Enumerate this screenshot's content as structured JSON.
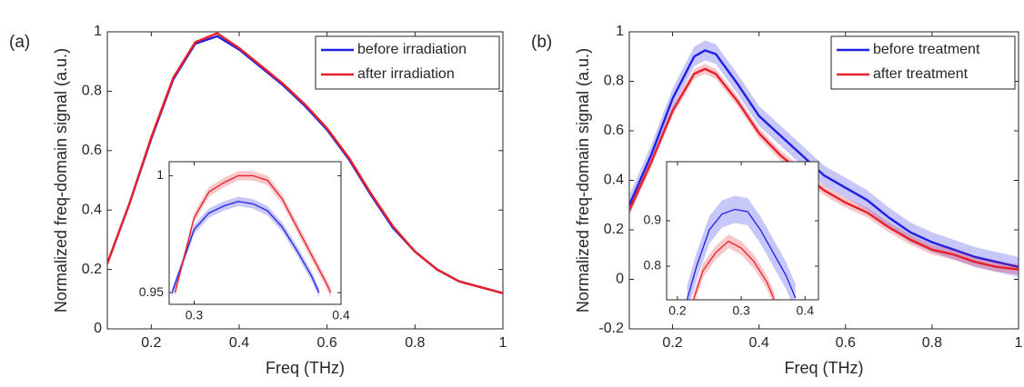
{
  "chart_data": [
    {
      "type": "line",
      "panel_label": "(a)",
      "xlabel": "Freq (THz)",
      "ylabel": "Normalized freq-domain signal (a.u.)",
      "xlim": [
        0.1,
        1
      ],
      "ylim": [
        0,
        1
      ],
      "xticks": [
        0.2,
        0.4,
        0.6,
        0.8,
        1
      ],
      "yticks": [
        0,
        0.2,
        0.4,
        0.6,
        0.8,
        1
      ],
      "legend": "upper right",
      "x": [
        0.1,
        0.15,
        0.2,
        0.25,
        0.3,
        0.35,
        0.4,
        0.45,
        0.5,
        0.55,
        0.6,
        0.65,
        0.7,
        0.75,
        0.8,
        0.85,
        0.9,
        0.95,
        1
      ],
      "series": [
        {
          "name": "before irradiation",
          "color": "#1f1fe6",
          "band": 0.003,
          "values": [
            0.22,
            0.42,
            0.64,
            0.84,
            0.96,
            0.985,
            0.94,
            0.88,
            0.82,
            0.75,
            0.67,
            0.57,
            0.45,
            0.34,
            0.26,
            0.2,
            0.16,
            0.14,
            0.12
          ]
        },
        {
          "name": "after irradiation",
          "color": "#e8202a",
          "band": 0.003,
          "values": [
            0.22,
            0.42,
            0.645,
            0.845,
            0.965,
            0.995,
            0.945,
            0.885,
            0.825,
            0.755,
            0.675,
            0.575,
            0.455,
            0.345,
            0.26,
            0.2,
            0.16,
            0.14,
            0.12
          ]
        }
      ],
      "inset": {
        "xlim": [
          0.283,
          0.4
        ],
        "ylim": [
          0.945,
          1.006
        ],
        "xticks": [
          0.3,
          0.4
        ],
        "yticks": [
          0.95,
          1
        ],
        "series": [
          {
            "color": "#1f1fe6",
            "band": 0.002,
            "x": [
              0.285,
              0.3,
              0.31,
              0.32,
              0.33,
              0.34,
              0.35,
              0.36,
              0.37,
              0.38,
              0.385
            ],
            "values": [
              0.95,
              0.977,
              0.984,
              0.987,
              0.989,
              0.988,
              0.985,
              0.978,
              0.968,
              0.957,
              0.95
            ]
          },
          {
            "color": "#e8202a",
            "band": 0.002,
            "x": [
              0.287,
              0.3,
              0.31,
              0.32,
              0.33,
              0.34,
              0.35,
              0.36,
              0.37,
              0.38,
              0.39,
              0.393
            ],
            "values": [
              0.95,
              0.982,
              0.993,
              0.997,
              1.0,
              1.0,
              0.998,
              0.99,
              0.978,
              0.966,
              0.954,
              0.95
            ]
          }
        ]
      }
    },
    {
      "type": "line",
      "panel_label": "(b)",
      "xlabel": "Freq (THz)",
      "ylabel": "Normalized freq-domain signal (a.u.)",
      "xlim": [
        0.1,
        1
      ],
      "ylim": [
        -0.2,
        1
      ],
      "xticks": [
        0.2,
        0.4,
        0.6,
        0.8,
        1
      ],
      "yticks": [
        -0.2,
        0,
        0.2,
        0.4,
        0.6,
        0.8,
        1
      ],
      "legend": "upper right",
      "x": [
        0.1,
        0.15,
        0.2,
        0.25,
        0.275,
        0.3,
        0.35,
        0.4,
        0.45,
        0.5,
        0.55,
        0.6,
        0.65,
        0.7,
        0.75,
        0.8,
        0.85,
        0.9,
        0.95,
        1
      ],
      "series": [
        {
          "name": "before treatment",
          "color": "#1f1fe6",
          "band": 0.04,
          "values": [
            0.3,
            0.5,
            0.73,
            0.9,
            0.925,
            0.91,
            0.79,
            0.66,
            0.58,
            0.5,
            0.42,
            0.37,
            0.32,
            0.25,
            0.19,
            0.15,
            0.12,
            0.09,
            0.07,
            0.05
          ]
        },
        {
          "name": "after treatment",
          "color": "#e8202a",
          "band": 0.02,
          "values": [
            0.28,
            0.47,
            0.68,
            0.83,
            0.85,
            0.83,
            0.72,
            0.59,
            0.5,
            0.43,
            0.36,
            0.31,
            0.27,
            0.21,
            0.16,
            0.12,
            0.1,
            0.07,
            0.05,
            0.04
          ]
        }
      ],
      "inset": {
        "xlim": [
          0.183,
          0.421
        ],
        "ylim": [
          0.726,
          1.03
        ],
        "xticks": [
          0.2,
          0.3,
          0.4
        ],
        "yticks": [
          0.8,
          0.9
        ],
        "series": [
          {
            "color": "#1f1fe6",
            "band": 0.03,
            "x": [
              0.215,
              0.23,
              0.25,
              0.27,
              0.29,
              0.31,
              0.33,
              0.35,
              0.37,
              0.385
            ],
            "values": [
              0.726,
              0.8,
              0.88,
              0.915,
              0.925,
              0.92,
              0.88,
              0.83,
              0.78,
              0.73
            ]
          },
          {
            "color": "#e8202a",
            "band": 0.015,
            "x": [
              0.225,
              0.24,
              0.26,
              0.28,
              0.3,
              0.32,
              0.34,
              0.352
            ],
            "values": [
              0.726,
              0.79,
              0.83,
              0.855,
              0.84,
              0.81,
              0.765,
              0.726
            ]
          }
        ]
      }
    }
  ]
}
